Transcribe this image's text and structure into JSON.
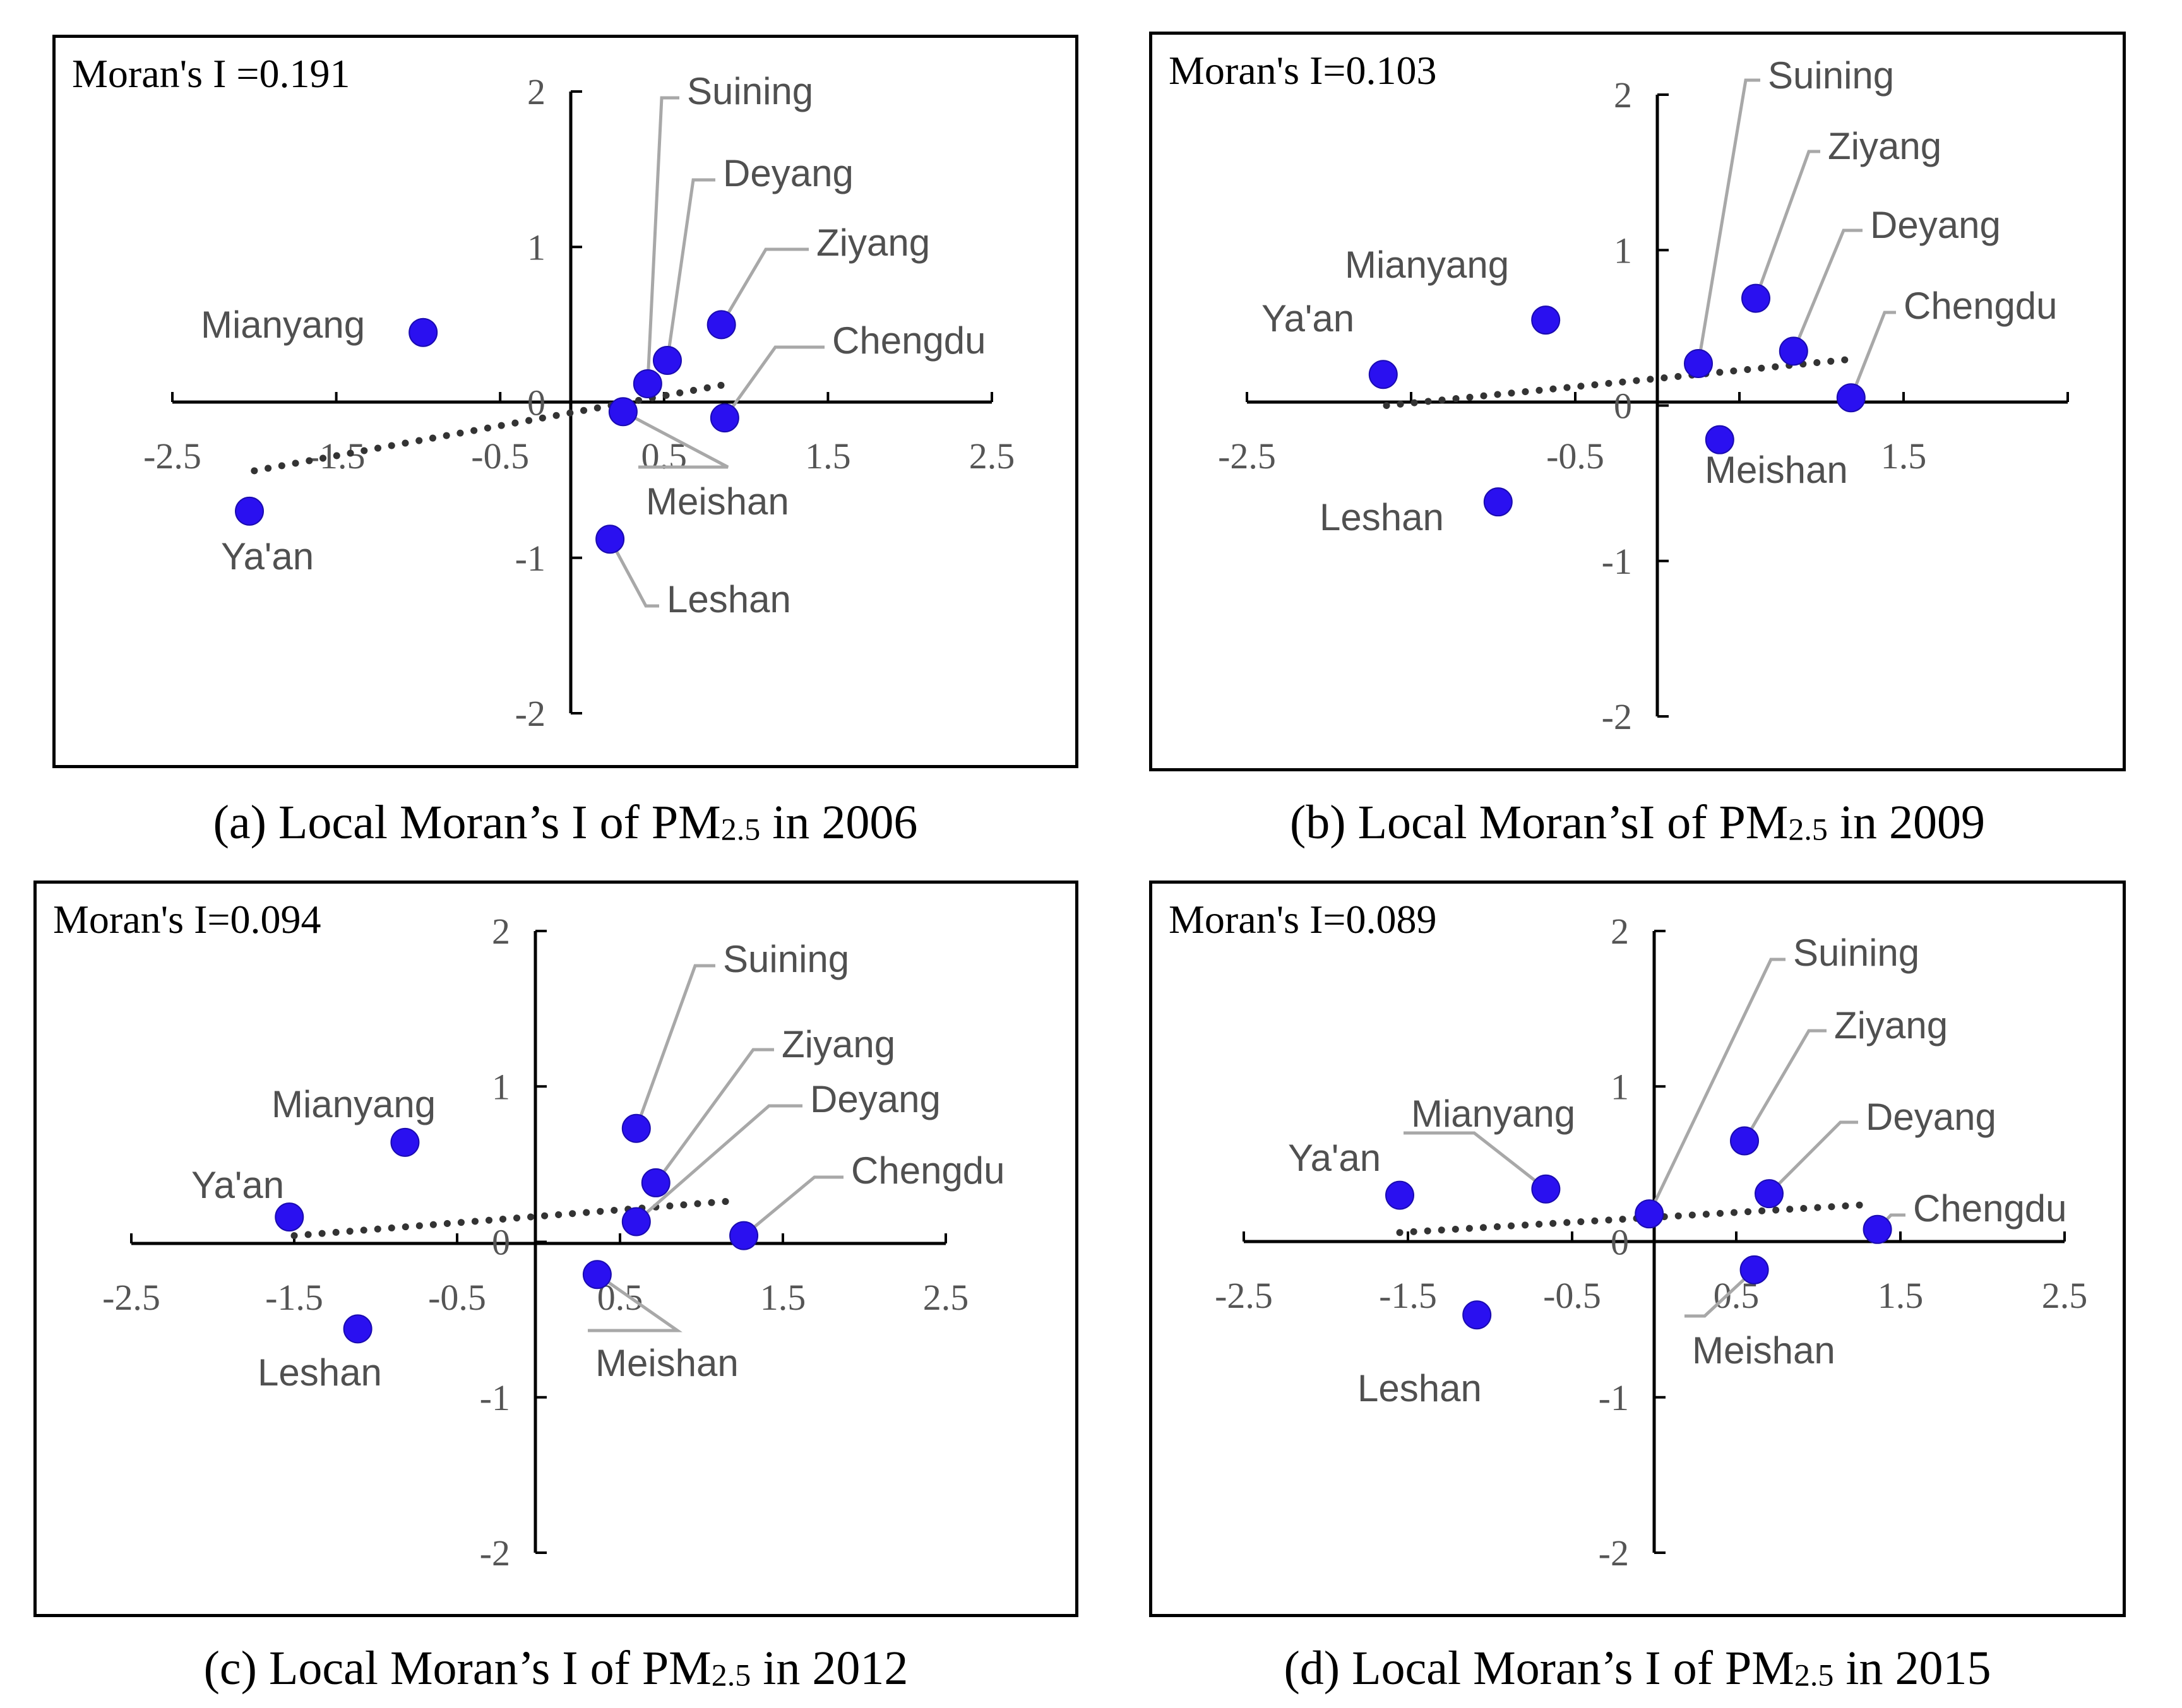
{
  "colors": {
    "point": "#2a10f0",
    "point_edge": "#1a0bb0",
    "axis": "#000000",
    "leader": "#a8a8a8",
    "trend": "#333333",
    "tick_text": "#555555",
    "label_text": "#505050"
  },
  "chart_data": [
    {
      "type": "scatter",
      "id": "a",
      "stat_text": "Moran's I =0.191",
      "caption_pre": "(a) Local Moran’s I of PM",
      "caption_sub": "2.5",
      "caption_post": " in 2006",
      "xlim": [
        -2.5,
        2.5
      ],
      "ylim": [
        -2,
        2
      ],
      "x_ticks": [
        "-2.5",
        "-1.5",
        "-0.5",
        "0.5",
        "1.5",
        "2.5"
      ],
      "y_ticks": [
        "2",
        "1",
        "0",
        "-1",
        "-2"
      ],
      "trend": {
        "x": [
          -2.0,
          0.9
        ],
        "y": [
          -0.44,
          0.12
        ]
      },
      "points": [
        {
          "name": "Suining",
          "x": 0.4,
          "y": 0.12
        },
        {
          "name": "Deyang",
          "x": 0.52,
          "y": 0.27
        },
        {
          "name": "Ziyang",
          "x": 0.85,
          "y": 0.5
        },
        {
          "name": "Chengdu",
          "x": 0.87,
          "y": -0.1
        },
        {
          "name": "Mianyang",
          "x": -0.97,
          "y": 0.45
        },
        {
          "name": "Meishan",
          "x": 0.25,
          "y": -0.06
        },
        {
          "name": "Ya'an",
          "x": -2.03,
          "y": -0.7
        },
        {
          "name": "Leshan",
          "x": 0.17,
          "y": -0.88
        }
      ]
    },
    {
      "type": "scatter",
      "id": "b",
      "stat_text": "Moran's I=0.103",
      "caption_pre": "(b) Local Moran’sI of PM",
      "caption_sub": "2.5",
      "caption_post": " in 2009",
      "xlim": [
        -2.5,
        2.5
      ],
      "ylim": [
        -2,
        2
      ],
      "x_ticks": [
        "-2.5",
        "-0.5",
        "1.5"
      ],
      "y_ticks": [
        "2",
        "1",
        "0",
        "-1",
        "-2"
      ],
      "trend": {
        "x": [
          -1.65,
          1.2
        ],
        "y": [
          0.0,
          0.3
        ]
      },
      "points": [
        {
          "name": "Suining",
          "x": 0.25,
          "y": 0.27
        },
        {
          "name": "Ziyang",
          "x": 0.6,
          "y": 0.69
        },
        {
          "name": "Deyang",
          "x": 0.83,
          "y": 0.35
        },
        {
          "name": "Chengdu",
          "x": 1.18,
          "y": 0.05
        },
        {
          "name": "Mianyang",
          "x": -0.68,
          "y": 0.55
        },
        {
          "name": "Ya'an",
          "x": -1.67,
          "y": 0.2
        },
        {
          "name": "Meishan",
          "x": 0.38,
          "y": -0.22
        },
        {
          "name": "Leshan",
          "x": -0.97,
          "y": -0.62
        }
      ]
    },
    {
      "type": "scatter",
      "id": "c",
      "stat_text": "Moran's I=0.094",
      "caption_pre": "(c) Local Moran’s I of PM",
      "caption_sub": "2.5",
      "caption_post": " in 2012",
      "xlim": [
        -2.5,
        2.5
      ],
      "ylim": [
        -2,
        2
      ],
      "x_ticks": [
        "-2.5",
        "-1.5",
        "-0.5",
        "0.5",
        "1.5",
        "2.5"
      ],
      "y_ticks": [
        "2",
        "1",
        "0",
        "-1",
        "-2"
      ],
      "trend": {
        "x": [
          -1.5,
          1.15
        ],
        "y": [
          0.04,
          0.26
        ]
      },
      "points": [
        {
          "name": "Suining",
          "x": 0.6,
          "y": 0.73
        },
        {
          "name": "Ziyang",
          "x": 0.72,
          "y": 0.38
        },
        {
          "name": "Deyang",
          "x": 0.6,
          "y": 0.13
        },
        {
          "name": "Chengdu",
          "x": 1.26,
          "y": 0.04
        },
        {
          "name": "Mianyang",
          "x": -0.82,
          "y": 0.64
        },
        {
          "name": "Ya'an",
          "x": -1.53,
          "y": 0.16
        },
        {
          "name": "Meishan",
          "x": 0.36,
          "y": -0.21
        },
        {
          "name": "Leshan",
          "x": -1.11,
          "y": -0.56
        }
      ]
    },
    {
      "type": "scatter",
      "id": "d",
      "stat_text": "Moran's I=0.089",
      "caption_pre": "(d) Local Moran’s I of PM",
      "caption_sub": "2.5",
      "caption_post": " in 2015",
      "xlim": [
        -2.5,
        2.5
      ],
      "ylim": [
        -2,
        2
      ],
      "x_ticks": [
        "-2.5",
        "-1.5",
        "-0.5",
        "0.5",
        "1.5",
        "2.5"
      ],
      "y_ticks": [
        "2",
        "1",
        "0",
        "-1",
        "-2"
      ],
      "trend": {
        "x": [
          -1.55,
          1.3
        ],
        "y": [
          0.06,
          0.24
        ]
      },
      "points": [
        {
          "name": "Suining",
          "x": -0.03,
          "y": 0.18
        },
        {
          "name": "Ziyang",
          "x": 0.55,
          "y": 0.65
        },
        {
          "name": "Deyang",
          "x": 0.7,
          "y": 0.31
        },
        {
          "name": "Chengdu",
          "x": 1.36,
          "y": 0.08
        },
        {
          "name": "Mianyang",
          "x": -0.66,
          "y": 0.34
        },
        {
          "name": "Ya'an",
          "x": -1.55,
          "y": 0.3
        },
        {
          "name": "Meishan",
          "x": 0.61,
          "y": -0.18
        },
        {
          "name": "Leshan",
          "x": -1.08,
          "y": -0.47
        }
      ]
    }
  ]
}
